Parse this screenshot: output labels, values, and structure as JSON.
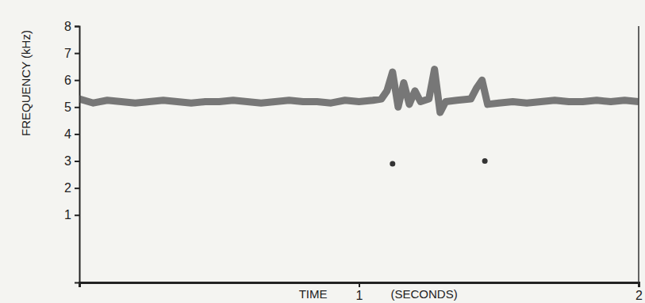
{
  "chart_data": {
    "type": "line",
    "x_label": "TIME (SECONDS)",
    "y_label": "FREQUENCY (kHz)",
    "xlim": [
      0,
      2
    ],
    "ylim": [
      -1.5,
      8
    ],
    "xticks": [
      1,
      2
    ],
    "yticks": [
      1,
      2,
      3,
      4,
      5,
      6,
      7,
      8
    ],
    "series": [
      {
        "type": "line",
        "color": "#4d4d4d",
        "x": [
          0,
          0.05,
          0.1,
          0.15,
          0.2,
          0.25,
          0.3,
          0.35,
          0.4,
          0.45,
          0.5,
          0.55,
          0.6,
          0.65,
          0.7,
          0.75,
          0.8,
          0.85,
          0.9,
          0.95,
          1.0,
          1.05,
          1.08,
          1.1,
          1.12,
          1.14,
          1.16,
          1.18,
          1.2,
          1.22,
          1.25,
          1.27,
          1.29,
          1.31,
          1.35,
          1.4,
          1.42,
          1.44,
          1.46,
          1.5,
          1.55,
          1.6,
          1.65,
          1.7,
          1.75,
          1.8,
          1.85,
          1.9,
          1.95,
          2.0
        ],
        "values": [
          5.3,
          5.15,
          5.25,
          5.2,
          5.15,
          5.2,
          5.25,
          5.2,
          5.15,
          5.2,
          5.2,
          5.25,
          5.2,
          5.15,
          5.2,
          5.25,
          5.2,
          5.2,
          5.15,
          5.25,
          5.2,
          5.25,
          5.3,
          5.6,
          6.3,
          5.0,
          5.9,
          5.1,
          5.6,
          5.2,
          5.3,
          6.4,
          4.8,
          5.2,
          5.25,
          5.3,
          5.7,
          6.0,
          5.1,
          5.15,
          5.2,
          5.15,
          5.2,
          5.25,
          5.2,
          5.2,
          5.25,
          5.2,
          5.25,
          5.2
        ]
      },
      {
        "type": "scatter",
        "color": "#333333",
        "marker": "circle",
        "x": [
          1.12,
          1.45
        ],
        "values": [
          2.9,
          3.0
        ]
      }
    ]
  }
}
